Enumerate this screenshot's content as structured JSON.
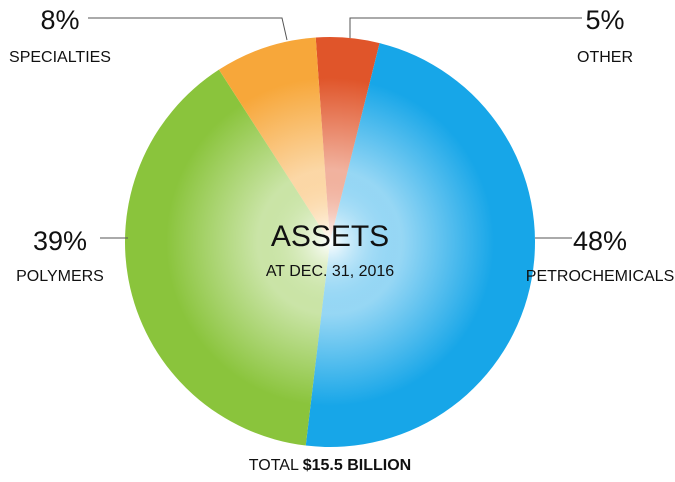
{
  "chart_data": {
    "type": "pie",
    "title": "ASSETS",
    "subtitle": "AT DEC. 31, 2016",
    "categories": [
      "OTHER",
      "PETROCHEMICALS",
      "POLYMERS",
      "SPECIALTIES"
    ],
    "values": [
      5,
      48,
      39,
      8
    ],
    "value_labels": [
      "5%",
      "48%",
      "39%",
      "8%"
    ],
    "colors": [
      "#e0552a",
      "#17a6e8",
      "#8ac43c",
      "#f7a73a"
    ],
    "annotations": [
      "TOTAL",
      "$15.5 BILLION"
    ]
  }
}
